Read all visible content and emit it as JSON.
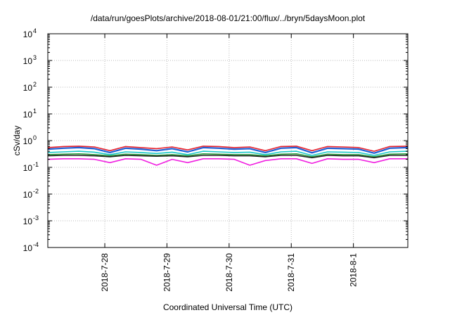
{
  "chart_data": {
    "type": "line",
    "title": "/data/run/goesPlots/archive/2018-08-01/21:00/flux/../bryn/5daysMoon.plot",
    "xlabel": "Coordinated Universal Time (UTC)",
    "ylabel": "cSv/day",
    "yscale": "log",
    "ylim": [
      0.0001,
      10000
    ],
    "xlim": [
      "2018-07-27 02:00",
      "2018-08-01 21:00"
    ],
    "x_ticks": [
      "2018-7-28",
      "2018-7-29",
      "2018-7-30",
      "2018-7-31",
      "2018-8-1"
    ],
    "y_ticks": [
      {
        "base": "10",
        "exp": "4",
        "value": 10000
      },
      {
        "base": "10",
        "exp": "3",
        "value": 1000
      },
      {
        "base": "10",
        "exp": "2",
        "value": 100
      },
      {
        "base": "10",
        "exp": "1",
        "value": 10
      },
      {
        "base": "10",
        "exp": "0",
        "value": 1
      },
      {
        "base": "10",
        "exp": "-1",
        "value": 0.1
      },
      {
        "base": "10",
        "exp": "-2",
        "value": 0.01
      },
      {
        "base": "10",
        "exp": "-3",
        "value": 0.001
      },
      {
        "base": "10",
        "exp": "-4",
        "value": 0.0001
      }
    ],
    "grid": true,
    "x": [
      "2018-07-27 02:00",
      "2018-07-27 08:00",
      "2018-07-27 14:00",
      "2018-07-27 20:00",
      "2018-07-28 02:00",
      "2018-07-28 08:00",
      "2018-07-28 14:00",
      "2018-07-28 20:00",
      "2018-07-29 02:00",
      "2018-07-29 08:00",
      "2018-07-29 14:00",
      "2018-07-29 20:00",
      "2018-07-30 02:00",
      "2018-07-30 08:00",
      "2018-07-30 14:00",
      "2018-07-30 20:00",
      "2018-07-31 02:00",
      "2018-07-31 08:00",
      "2018-07-31 14:00",
      "2018-07-31 20:00",
      "2018-08-01 02:00",
      "2018-08-01 08:00",
      "2018-08-01 14:00",
      "2018-08-01 21:00"
    ],
    "series": [
      {
        "color": "#e8202a",
        "values": [
          0.55,
          0.6,
          0.62,
          0.58,
          0.42,
          0.6,
          0.55,
          0.5,
          0.58,
          0.45,
          0.62,
          0.6,
          0.55,
          0.58,
          0.42,
          0.6,
          0.62,
          0.42,
          0.6,
          0.58,
          0.55,
          0.4,
          0.6,
          0.62
        ]
      },
      {
        "color": "#1f5fd6",
        "values": [
          0.48,
          0.52,
          0.55,
          0.5,
          0.36,
          0.52,
          0.48,
          0.42,
          0.5,
          0.38,
          0.55,
          0.52,
          0.48,
          0.5,
          0.36,
          0.52,
          0.55,
          0.35,
          0.52,
          0.5,
          0.48,
          0.34,
          0.52,
          0.55
        ]
      },
      {
        "color": "#18c8c8",
        "values": [
          0.36,
          0.38,
          0.4,
          0.37,
          0.3,
          0.38,
          0.36,
          0.33,
          0.37,
          0.3,
          0.4,
          0.38,
          0.36,
          0.37,
          0.3,
          0.38,
          0.4,
          0.28,
          0.38,
          0.37,
          0.36,
          0.28,
          0.38,
          0.4
        ]
      },
      {
        "color": "#2a9a3a",
        "values": [
          0.3,
          0.31,
          0.32,
          0.3,
          0.27,
          0.31,
          0.3,
          0.28,
          0.3,
          0.27,
          0.32,
          0.31,
          0.3,
          0.3,
          0.27,
          0.31,
          0.32,
          0.25,
          0.31,
          0.3,
          0.3,
          0.25,
          0.31,
          0.32
        ]
      },
      {
        "color": "#222222",
        "values": [
          0.27,
          0.28,
          0.28,
          0.27,
          0.25,
          0.28,
          0.27,
          0.26,
          0.27,
          0.25,
          0.28,
          0.28,
          0.27,
          0.27,
          0.25,
          0.28,
          0.28,
          0.23,
          0.28,
          0.27,
          0.27,
          0.23,
          0.28,
          0.28
        ]
      },
      {
        "color": "#f020e0",
        "values": [
          0.2,
          0.21,
          0.21,
          0.2,
          0.15,
          0.21,
          0.2,
          0.12,
          0.2,
          0.15,
          0.21,
          0.21,
          0.2,
          0.12,
          0.18,
          0.21,
          0.21,
          0.14,
          0.21,
          0.2,
          0.2,
          0.15,
          0.21,
          0.21
        ]
      }
    ]
  }
}
